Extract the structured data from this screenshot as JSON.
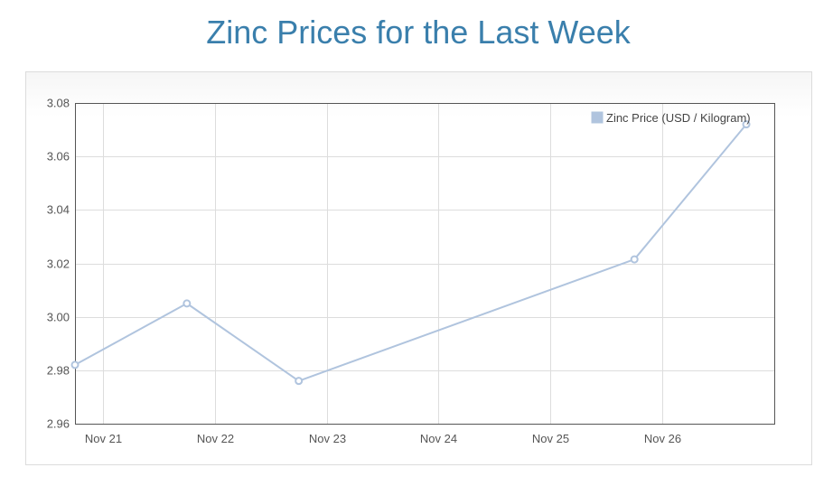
{
  "title": "Zinc Prices for the Last Week",
  "colors": {
    "title": "#3a7fac",
    "series": "#b0c4de",
    "grid": "#dddddd",
    "axis": "#555555"
  },
  "chart_data": {
    "type": "line",
    "title": "Zinc Prices for the Last Week",
    "xlabel": "",
    "ylabel": "",
    "x_range": [
      "Nov 21",
      "Nov 26 (late)"
    ],
    "x_ticks": [
      "Nov 21",
      "Nov 22",
      "Nov 23",
      "Nov 24",
      "Nov 25",
      "Nov 26"
    ],
    "y_ticks": [
      "2.96",
      "2.98",
      "3.00",
      "3.02",
      "3.04",
      "3.06",
      "3.08"
    ],
    "ylim": [
      2.96,
      3.08
    ],
    "grid": true,
    "legend_position": "top-right",
    "series": [
      {
        "name": "Zinc Price (USD / Kilogram)",
        "x": [
          -0.25,
          0.75,
          1.75,
          4.75,
          5.75
        ],
        "x_dates": [
          "Nov 20",
          "Nov 21",
          "Nov 22",
          "Nov 25",
          "Nov 26"
        ],
        "values": [
          2.982,
          3.005,
          2.976,
          3.0215,
          3.072
        ]
      }
    ]
  }
}
